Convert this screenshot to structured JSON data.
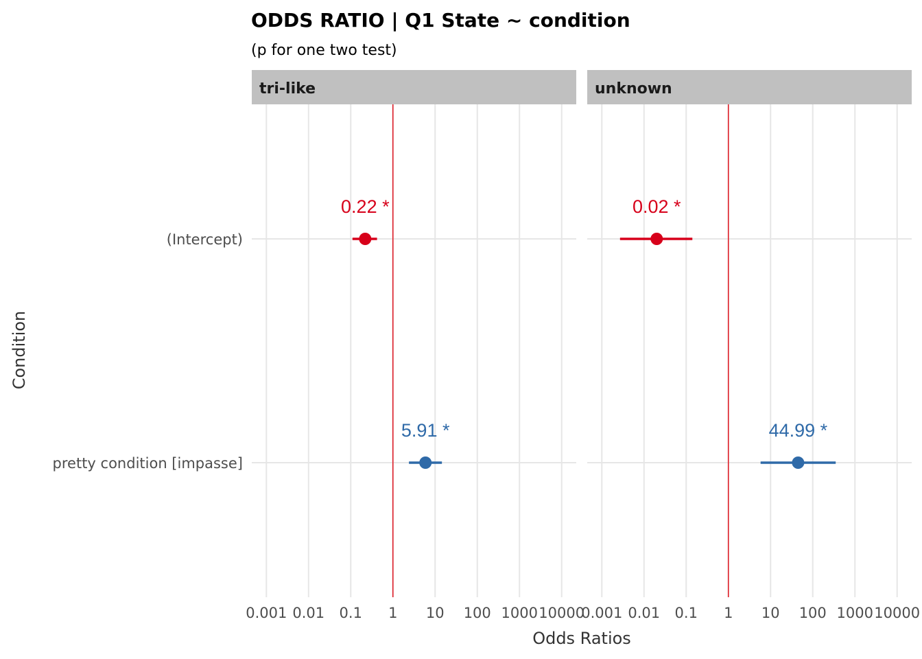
{
  "chart_data": {
    "type": "scatter",
    "title": "ODDS RATIO | Q1 State ~ condition",
    "subtitle": "(p for one two test)",
    "xlabel": "Odds Ratios",
    "ylabel": "Condition",
    "x_scale": "log10",
    "xlim": [
      0.001,
      10000
    ],
    "x_ticks": [
      0.001,
      0.01,
      0.1,
      1,
      10,
      100,
      1000,
      10000
    ],
    "x_tick_labels": [
      "0.001",
      "0.01",
      "0.1",
      "1",
      "10",
      "100",
      "1000",
      "10000"
    ],
    "y_categories": [
      "(Intercept)",
      "pretty condition [impasse]"
    ],
    "reference_line": 1,
    "grid": true,
    "colors": {
      "negative": "#d7001a",
      "positive": "#2f6aa8",
      "reference": "#e0202a",
      "strip": "#c0c0c0",
      "grid": "#e6e6e6"
    },
    "panels": [
      {
        "label": "tri-like",
        "points": [
          {
            "term": "(Intercept)",
            "estimate": 0.22,
            "ci_low": 0.11,
            "ci_high": 0.42,
            "label": "0.22 *",
            "direction": "negative"
          },
          {
            "term": "pretty condition [impasse]",
            "estimate": 5.91,
            "ci_low": 2.4,
            "ci_high": 14.5,
            "label": "5.91 *",
            "direction": "positive"
          }
        ]
      },
      {
        "label": "unknown",
        "points": [
          {
            "term": "(Intercept)",
            "estimate": 0.02,
            "ci_low": 0.0027,
            "ci_high": 0.14,
            "label": "0.02 *",
            "direction": "negative"
          },
          {
            "term": "pretty condition [impasse]",
            "estimate": 44.99,
            "ci_low": 5.8,
            "ci_high": 350,
            "label": "44.99 *",
            "direction": "positive"
          }
        ]
      }
    ]
  }
}
